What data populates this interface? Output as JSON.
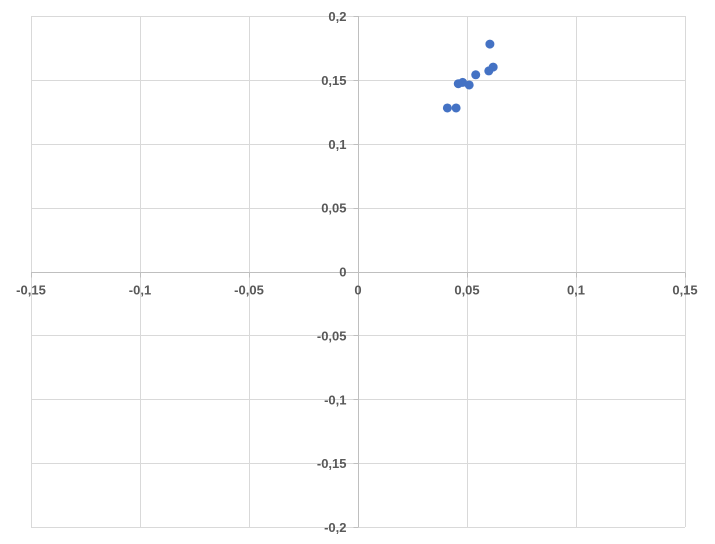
{
  "chart_data": {
    "type": "scatter",
    "title": "",
    "xlabel": "",
    "ylabel": "",
    "xlim": [
      -0.15,
      0.15
    ],
    "ylim": [
      -0.2,
      0.2
    ],
    "grid": true,
    "legend": "none",
    "x_ticks": [
      {
        "value": -0.15,
        "label": "-0,15"
      },
      {
        "value": -0.1,
        "label": "-0,1"
      },
      {
        "value": -0.05,
        "label": "-0,05"
      },
      {
        "value": 0,
        "label": "0"
      },
      {
        "value": 0.05,
        "label": "0,05"
      },
      {
        "value": 0.1,
        "label": "0,1"
      },
      {
        "value": 0.15,
        "label": "0,15"
      }
    ],
    "y_ticks": [
      {
        "value": 0.2,
        "label": "0,2"
      },
      {
        "value": 0.15,
        "label": "0,15"
      },
      {
        "value": 0.1,
        "label": "0,1"
      },
      {
        "value": 0.05,
        "label": "0,05"
      },
      {
        "value": 0,
        "label": "0"
      },
      {
        "value": -0.05,
        "label": "-0,05"
      },
      {
        "value": -0.1,
        "label": "-0,1"
      },
      {
        "value": -0.15,
        "label": "-0,15"
      },
      {
        "value": -0.2,
        "label": "-0,2"
      }
    ],
    "series": [
      {
        "color": "#4472c4",
        "points": [
          {
            "x": 0.041,
            "y": 0.128
          },
          {
            "x": 0.045,
            "y": 0.128
          },
          {
            "x": 0.046,
            "y": 0.147
          },
          {
            "x": 0.048,
            "y": 0.148
          },
          {
            "x": 0.051,
            "y": 0.146
          },
          {
            "x": 0.054,
            "y": 0.154
          },
          {
            "x": 0.06,
            "y": 0.157
          },
          {
            "x": 0.062,
            "y": 0.16
          },
          {
            "x": 0.0605,
            "y": 0.178
          }
        ]
      }
    ],
    "colors": {
      "gridline": "#d9d9d9",
      "axis": "#bfbfbf",
      "tick_text": "#595959"
    }
  }
}
